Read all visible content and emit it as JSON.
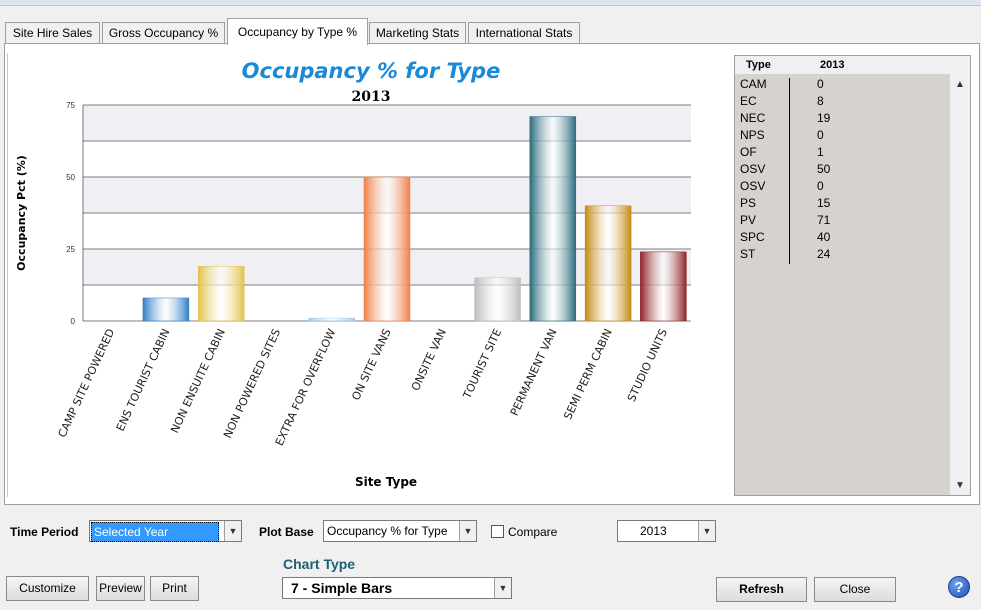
{
  "tabs": [
    {
      "label": "Site Hire Sales"
    },
    {
      "label": "Gross Occupancy %"
    },
    {
      "label": "Occupancy by Type %",
      "active": true
    },
    {
      "label": "Marketing Stats"
    },
    {
      "label": "International Stats"
    }
  ],
  "chart_data": {
    "type": "bar",
    "title": "Occupancy %  for Type",
    "subtitle": "2013",
    "xlabel": "Site Type",
    "ylabel": "Occupancy Pct (%)",
    "ylim": [
      0,
      75
    ],
    "yticks": [
      "0",
      "25",
      "50",
      "75"
    ],
    "grid": true,
    "categories": [
      "CAMP SITE POWERED",
      "ENS  TOURIST CABIN",
      "NON ENSUITE CABIN",
      "NON POWERED SITES",
      "EXTRA FOR OVERFLOW",
      "ON SITE VANS",
      "ONSITE VAN",
      "TOURIST SITE",
      "PERMANENT VAN",
      "SEMI PERM CABIN",
      "STUDIO UNITS"
    ],
    "values": [
      0,
      8,
      19,
      0,
      1,
      50,
      0,
      15,
      71,
      40,
      24
    ],
    "colors": [
      "#2f7fc8",
      "#2f7fc8",
      "#e2c24a",
      "#9fc9ea",
      "#9fc9ea",
      "#f07f45",
      "#bbbbbb",
      "#bdbdbd",
      "#2a6b7b",
      "#c48a10",
      "#8e2227"
    ]
  },
  "grid": {
    "headers": {
      "type": "Type",
      "year": "2013"
    },
    "rows": [
      {
        "type": "CAM",
        "value": "0"
      },
      {
        "type": "EC",
        "value": "8"
      },
      {
        "type": "NEC",
        "value": "19"
      },
      {
        "type": "NPS",
        "value": "0"
      },
      {
        "type": "OF",
        "value": "1"
      },
      {
        "type": "OSV",
        "value": "50"
      },
      {
        "type": "OSV",
        "value": "0"
      },
      {
        "type": "PS",
        "value": "15"
      },
      {
        "type": "PV",
        "value": "71"
      },
      {
        "type": "SPC",
        "value": "40"
      },
      {
        "type": "ST",
        "value": "24"
      }
    ]
  },
  "controls": {
    "time_period_label": "Time Period",
    "time_period_value": "Selected Year",
    "plot_base_label": "Plot Base",
    "plot_base_value": "Occupancy %  for Type",
    "compare_label": "Compare",
    "year_value": "2013",
    "chart_type_label": "Chart Type",
    "chart_type_value": "7 - Simple Bars"
  },
  "buttons": {
    "customize": "Customize",
    "preview": "Preview",
    "print": "Print",
    "refresh": "Refresh",
    "close": "Close",
    "help": "?"
  }
}
